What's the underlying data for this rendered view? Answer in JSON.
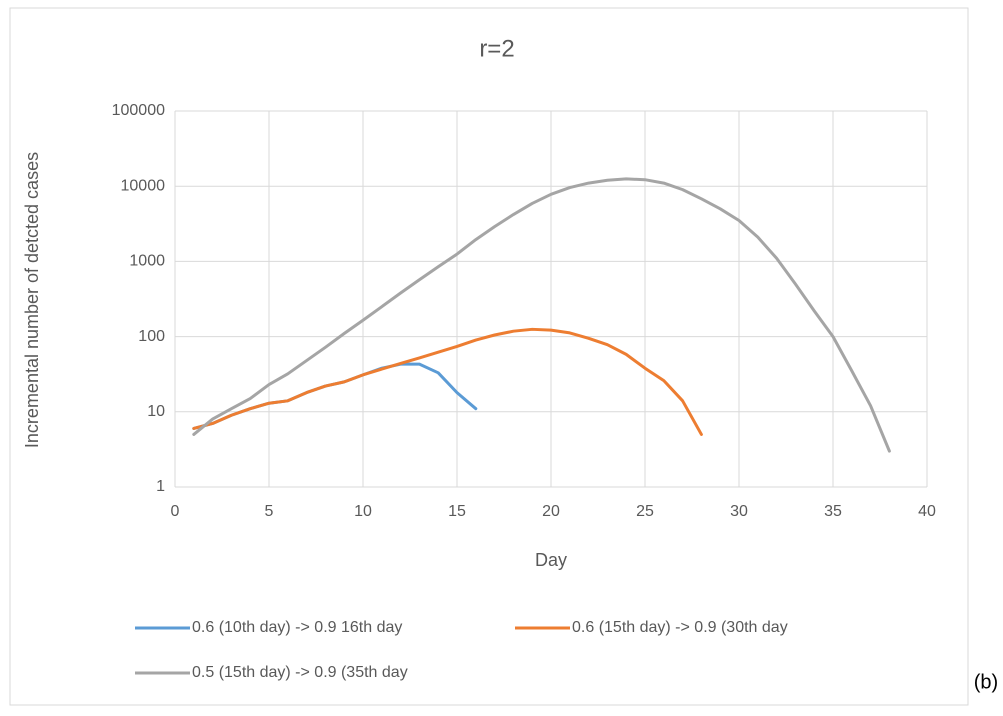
{
  "chart_data": {
    "type": "line",
    "title": "r=2",
    "x_label": "Day",
    "y_label": "Incremental number of detcted cases",
    "x": [
      1,
      2,
      3,
      4,
      5,
      6,
      7,
      8,
      9,
      10,
      11,
      12,
      13,
      14,
      15,
      16,
      17,
      18,
      19,
      20,
      21,
      22,
      23,
      24,
      25,
      26,
      27,
      28,
      29,
      30,
      31,
      32,
      33,
      34,
      35,
      36,
      37,
      38
    ],
    "series": [
      {
        "name": "0.6 (10th day) -> 0.9 16th day",
        "color": "#5b9bd5",
        "values": [
          6,
          7,
          9,
          11,
          13,
          14,
          18,
          22,
          25,
          31,
          38,
          43,
          43,
          33,
          18,
          11,
          null,
          null,
          null,
          null,
          null,
          null,
          null,
          null,
          null,
          null,
          null,
          null,
          null,
          null,
          null,
          null,
          null,
          null,
          null,
          null,
          null,
          null
        ]
      },
      {
        "name": "0.6 (15th day) -> 0.9 (30th day",
        "color": "#ed7d31",
        "values": [
          6,
          7,
          9,
          11,
          13,
          14,
          18,
          22,
          25,
          31,
          37,
          44,
          52,
          62,
          74,
          90,
          105,
          118,
          125,
          122,
          112,
          95,
          78,
          58,
          38,
          26,
          14,
          5,
          null,
          null,
          null,
          null,
          null,
          null,
          null,
          null,
          null,
          null
        ]
      },
      {
        "name": "0.5 (15th day) -> 0.9 (35th day",
        "color": "#a5a5a5",
        "values": [
          5,
          8,
          11,
          15,
          23,
          32,
          48,
          72,
          110,
          165,
          250,
          380,
          570,
          850,
          1250,
          1950,
          2900,
          4200,
          5900,
          7800,
          9600,
          11000,
          12000,
          12500,
          12200,
          11000,
          9000,
          6800,
          5000,
          3500,
          2100,
          1100,
          500,
          220,
          100,
          35,
          12,
          3
        ]
      }
    ],
    "xlim": [
      0,
      40
    ],
    "xticks": [
      0,
      5,
      10,
      15,
      20,
      25,
      30,
      35,
      40
    ],
    "ylim": [
      1,
      100000
    ],
    "yticks": [
      1,
      10,
      100,
      1000,
      10000,
      100000
    ],
    "log_y": true,
    "grid": true,
    "legend": "bottom"
  },
  "panel_label": "(b)"
}
